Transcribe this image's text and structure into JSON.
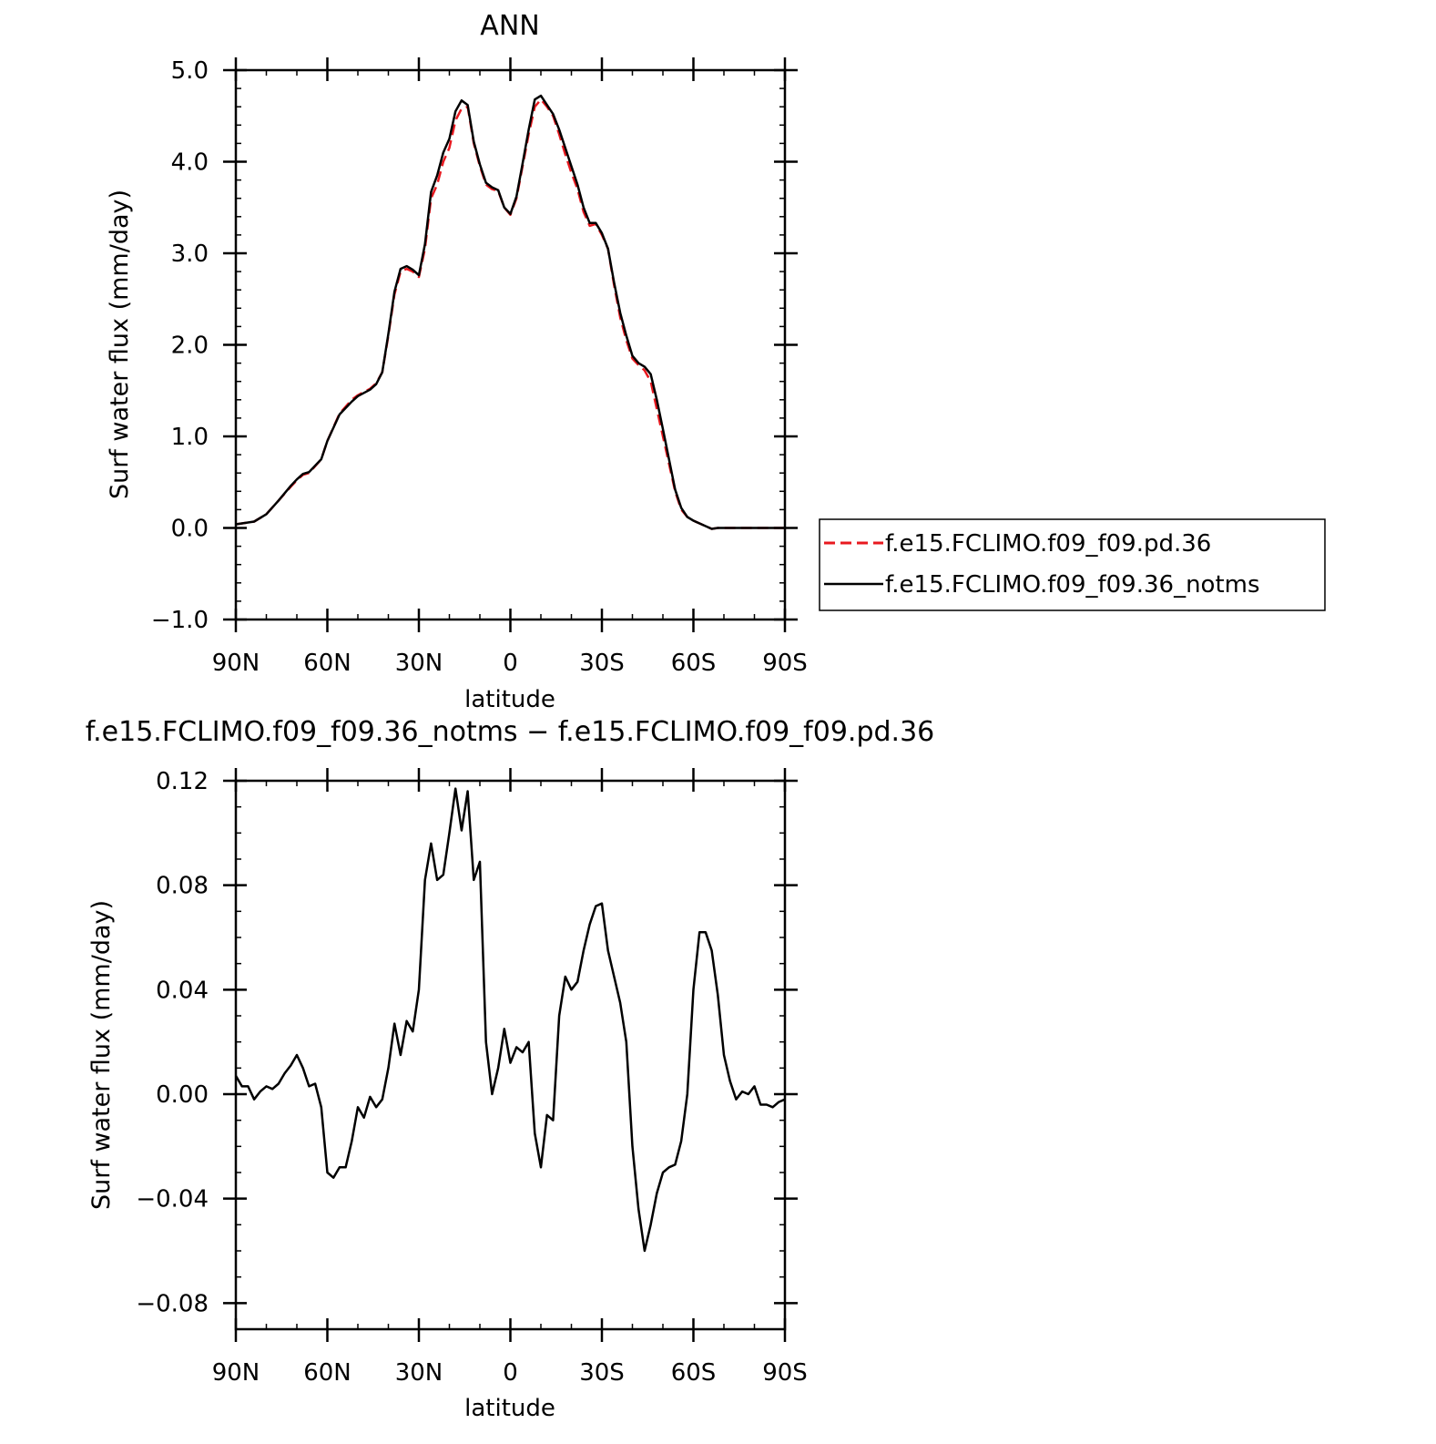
{
  "chart_data": [
    {
      "type": "line",
      "title": "ANN",
      "xlabel": "latitude",
      "ylabel": "Surf water flux (mm/day)",
      "xlim": [
        90,
        -90
      ],
      "ylim": [
        -1.0,
        5.0
      ],
      "xticks": [
        {
          "value": 90,
          "label": "90N"
        },
        {
          "value": 60,
          "label": "60N"
        },
        {
          "value": 30,
          "label": "30N"
        },
        {
          "value": 0,
          "label": "0"
        },
        {
          "value": -30,
          "label": "30S"
        },
        {
          "value": -60,
          "label": "60S"
        },
        {
          "value": -90,
          "label": "90S"
        }
      ],
      "yticks": [
        {
          "value": 5.0,
          "label": "5.0"
        },
        {
          "value": 4.0,
          "label": "4.0"
        },
        {
          "value": 3.0,
          "label": "3.0"
        },
        {
          "value": 2.0,
          "label": "2.0"
        },
        {
          "value": 1.0,
          "label": "1.0"
        },
        {
          "value": 0.0,
          "label": "0.0"
        },
        {
          "value": -1.0,
          "label": "−1.0"
        }
      ],
      "grid": false,
      "legend_position": "right",
      "x": [
        90,
        84,
        80,
        76,
        72,
        70,
        68,
        66,
        62,
        60,
        56,
        52,
        50,
        46,
        44,
        42,
        40,
        38,
        36,
        34,
        32,
        30,
        28,
        26,
        24,
        22,
        20,
        18,
        16,
        14,
        12,
        10,
        8,
        6,
        4,
        2,
        0,
        -2,
        -4,
        -6,
        -8,
        -10,
        -12,
        -14,
        -16,
        -18,
        -20,
        -22,
        -24,
        -26,
        -28,
        -30,
        -32,
        -34,
        -36,
        -38,
        -40,
        -42,
        -44,
        -46,
        -48,
        -50,
        -52,
        -54,
        -56,
        -58,
        -60,
        -62,
        -64,
        -66,
        -68,
        -70,
        -72,
        -74,
        -76,
        -78,
        -80,
        -82,
        -84,
        -86,
        -88,
        -90
      ],
      "series": [
        {
          "name": "f.e15.FCLIMO.f09_f09.pd.36",
          "color": "#e8191f",
          "dash": true,
          "values": [
            0.04,
            0.07,
            0.15,
            0.3,
            0.45,
            0.52,
            0.58,
            0.6,
            0.75,
            0.95,
            1.25,
            1.4,
            1.45,
            1.52,
            1.58,
            1.7,
            2.1,
            2.55,
            2.8,
            2.83,
            2.8,
            2.74,
            3.05,
            3.6,
            3.75,
            4.0,
            4.15,
            4.45,
            4.58,
            4.6,
            4.2,
            3.95,
            3.75,
            3.7,
            3.68,
            3.5,
            3.42,
            3.6,
            3.95,
            4.3,
            4.6,
            4.68,
            4.6,
            4.5,
            4.3,
            4.08,
            3.88,
            3.7,
            3.45,
            3.3,
            3.32,
            3.2,
            3.05,
            2.65,
            2.3,
            2.05,
            1.85,
            1.78,
            1.72,
            1.6,
            1.3,
            1.0,
            0.7,
            0.4,
            0.2,
            0.12,
            0.08,
            0.05,
            0.02,
            -0.01,
            0.0,
            0.0,
            0.0,
            0.0,
            0.0,
            0.0,
            0.0,
            0.0,
            0.0,
            0.0,
            0.0,
            0.0
          ]
        },
        {
          "name": "f.e15.FCLIMO.f09_f09.36_notms",
          "color": "#000000",
          "dash": false,
          "values": [
            0.04,
            0.07,
            0.15,
            0.3,
            0.46,
            0.53,
            0.59,
            0.61,
            0.75,
            0.95,
            1.24,
            1.38,
            1.44,
            1.51,
            1.57,
            1.7,
            2.12,
            2.58,
            2.83,
            2.86,
            2.82,
            2.76,
            3.1,
            3.67,
            3.85,
            4.1,
            4.25,
            4.55,
            4.67,
            4.62,
            4.22,
            3.97,
            3.77,
            3.72,
            3.69,
            3.5,
            3.43,
            3.62,
            3.98,
            4.35,
            4.68,
            4.72,
            4.62,
            4.52,
            4.35,
            4.15,
            3.95,
            3.75,
            3.5,
            3.33,
            3.33,
            3.22,
            3.05,
            2.68,
            2.35,
            2.1,
            1.88,
            1.8,
            1.76,
            1.68,
            1.4,
            1.08,
            0.75,
            0.42,
            0.22,
            0.12,
            0.08,
            0.05,
            0.02,
            -0.01,
            0.0,
            0.0,
            0.0,
            0.0,
            0.0,
            0.0,
            0.0,
            0.0,
            0.0,
            0.0,
            0.0,
            0.0
          ]
        }
      ]
    },
    {
      "type": "line",
      "title": "f.e15.FCLIMO.f09_f09.36_notms − f.e15.FCLIMO.f09_f09.pd.36",
      "xlabel": "latitude",
      "ylabel": "Surf water flux (mm/day)",
      "xlim": [
        90,
        -90
      ],
      "ylim": [
        -0.09,
        0.12
      ],
      "xticks": [
        {
          "value": 90,
          "label": "90N"
        },
        {
          "value": 60,
          "label": "60N"
        },
        {
          "value": 30,
          "label": "30N"
        },
        {
          "value": 0,
          "label": "0"
        },
        {
          "value": -30,
          "label": "30S"
        },
        {
          "value": -60,
          "label": "60S"
        },
        {
          "value": -90,
          "label": "90S"
        }
      ],
      "yticks": [
        {
          "value": 0.12,
          "label": "0.12"
        },
        {
          "value": 0.08,
          "label": "0.08"
        },
        {
          "value": 0.04,
          "label": "0.04"
        },
        {
          "value": 0.0,
          "label": "0.00"
        },
        {
          "value": -0.04,
          "label": "−0.04"
        },
        {
          "value": -0.08,
          "label": "−0.08"
        }
      ],
      "grid": false,
      "x": [
        90,
        88,
        86,
        84,
        82,
        80,
        78,
        76,
        74,
        72,
        70,
        68,
        66,
        64,
        62,
        60,
        58,
        56,
        54,
        52,
        50,
        48,
        46,
        44,
        42,
        40,
        38,
        36,
        34,
        32,
        30,
        28,
        26,
        24,
        22,
        20,
        18,
        16,
        14,
        12,
        10,
        8,
        6,
        4,
        2,
        0,
        -2,
        -4,
        -6,
        -8,
        -10,
        -12,
        -14,
        -16,
        -18,
        -20,
        -22,
        -24,
        -26,
        -28,
        -30,
        -32,
        -34,
        -36,
        -38,
        -40,
        -42,
        -44,
        -46,
        -48,
        -50,
        -52,
        -54,
        -56,
        -58,
        -60,
        -62,
        -64,
        -66,
        -68,
        -70,
        -72,
        -74,
        -76,
        -78,
        -80,
        -82,
        -84,
        -86,
        -88,
        -90
      ],
      "series": [
        {
          "name": "",
          "color": "#000000",
          "dash": false,
          "values": [
            0.007,
            0.003,
            0.003,
            -0.002,
            0.001,
            0.003,
            0.002,
            0.004,
            0.008,
            0.011,
            0.015,
            0.01,
            0.003,
            0.004,
            -0.005,
            -0.03,
            -0.032,
            -0.028,
            -0.028,
            -0.018,
            -0.005,
            -0.009,
            -0.001,
            -0.005,
            -0.002,
            0.01,
            0.027,
            0.015,
            0.028,
            0.024,
            0.04,
            0.082,
            0.096,
            0.082,
            0.084,
            0.1,
            0.117,
            0.101,
            0.116,
            0.082,
            0.089,
            0.02,
            0.0,
            0.01,
            0.025,
            0.012,
            0.018,
            0.016,
            0.02,
            -0.015,
            -0.028,
            -0.008,
            -0.01,
            0.03,
            0.045,
            0.04,
            0.043,
            0.055,
            0.065,
            0.072,
            0.073,
            0.055,
            0.045,
            0.035,
            0.02,
            -0.02,
            -0.044,
            -0.06,
            -0.05,
            -0.038,
            -0.03,
            -0.028,
            -0.027,
            -0.018,
            0.0,
            0.04,
            0.062,
            0.062,
            0.055,
            0.038,
            0.015,
            0.005,
            -0.002,
            0.001,
            0.0,
            0.003,
            -0.004,
            -0.004,
            -0.005,
            -0.003,
            -0.002
          ]
        }
      ]
    }
  ]
}
